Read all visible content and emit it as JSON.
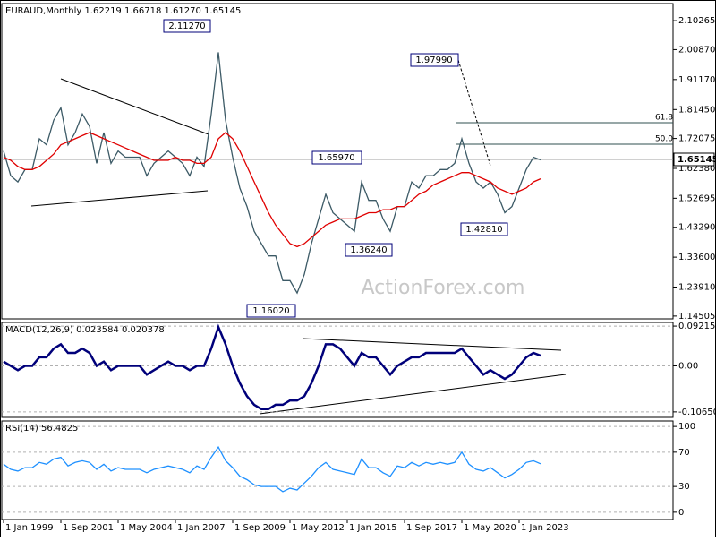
{
  "chart_data": [
    {
      "type": "line",
      "title": "EURAUD,Monthly  1.62219 1.66718 1.61270 1.65145",
      "watermark": "ActionForex.com",
      "annotations": [
        "2.11270",
        "1.97990",
        "1.65970",
        "1.36240",
        "1.42810",
        "1.16020",
        "61.8",
        "50.0"
      ],
      "last_price_label": "1.65145",
      "xlim": [
        -0.25,
        93.5
      ],
      "ylim": [
        1.136,
        2.158
      ],
      "grid": false,
      "yticks": [
        2.10265,
        {
          "value": 2.0087,
          "label": "2.00870"
        },
        {
          "value": 1.9117,
          "label": "1.91170"
        },
        {
          "value": 1.8145,
          "label": "1.81450"
        },
        1.72075,
        {
          "value": 1.6238,
          "label": "1.62380"
        },
        1.52695,
        {
          "value": 1.4329,
          "label": "1.43290"
        },
        {
          "value": 1.336,
          "label": "1.33600"
        },
        {
          "value": 1.2391,
          "label": "1.23910"
        },
        1.14505
      ],
      "series": [
        {
          "color": "#3c5a66",
          "values": [
            1.68,
            1.6,
            1.58,
            1.62,
            1.62,
            1.72,
            1.7,
            1.78,
            1.82,
            1.7,
            1.74,
            1.8,
            1.76,
            1.64,
            1.74,
            1.64,
            1.68,
            1.66,
            1.66,
            1.66,
            1.6,
            1.64,
            1.66,
            1.68,
            1.66,
            1.64,
            1.6,
            1.66,
            1.63,
            1.8,
            2.0,
            1.78,
            1.66,
            1.56,
            1.5,
            1.42,
            1.38,
            1.34,
            1.34,
            1.26,
            1.26,
            1.22,
            1.28,
            1.38,
            1.46,
            1.54,
            1.48,
            1.46,
            1.44,
            1.42,
            1.58,
            1.52,
            1.52,
            1.46,
            1.42,
            1.5,
            1.5,
            1.58,
            1.56,
            1.6,
            1.6,
            1.62,
            1.62,
            1.64,
            1.72,
            1.64,
            1.58,
            1.56,
            1.58,
            1.54,
            1.48,
            1.5,
            1.56,
            1.62,
            1.66,
            1.65145
          ]
        },
        {
          "color": "#e00000",
          "values": [
            1.66,
            1.65,
            1.63,
            1.62,
            1.62,
            1.63,
            1.65,
            1.67,
            1.7,
            1.71,
            1.72,
            1.73,
            1.74,
            1.73,
            1.72,
            1.71,
            1.7,
            1.69,
            1.68,
            1.67,
            1.66,
            1.65,
            1.65,
            1.65,
            1.66,
            1.65,
            1.65,
            1.64,
            1.64,
            1.66,
            1.72,
            1.74,
            1.72,
            1.68,
            1.63,
            1.58,
            1.53,
            1.48,
            1.44,
            1.41,
            1.38,
            1.37,
            1.38,
            1.4,
            1.42,
            1.44,
            1.45,
            1.46,
            1.46,
            1.46,
            1.47,
            1.48,
            1.48,
            1.49,
            1.49,
            1.5,
            1.5,
            1.52,
            1.54,
            1.55,
            1.57,
            1.58,
            1.59,
            1.6,
            1.61,
            1.61,
            1.6,
            1.59,
            1.58,
            1.56,
            1.55,
            1.54,
            1.55,
            1.56,
            1.58,
            1.59
          ]
        }
      ]
    },
    {
      "type": "line",
      "title": "MACD(12,26,9) 0.023584 0.020378",
      "xlim": [
        -0.25,
        93.5
      ],
      "ylim": [
        -0.1192,
        0.1006
      ],
      "grid": true,
      "yticks": [
        0.092158,
        {
          "value": 0,
          "label": "0.00"
        },
        -0.106503
      ],
      "series": [
        {
          "color": "#00007a",
          "values": [
            0.01,
            0.0,
            -0.01,
            0.0,
            0.0,
            0.02,
            0.02,
            0.04,
            0.05,
            0.03,
            0.03,
            0.04,
            0.03,
            0.0,
            0.01,
            -0.01,
            0.0,
            0.0,
            0.0,
            0.0,
            -0.02,
            -0.01,
            0.0,
            0.01,
            0.0,
            0.0,
            -0.01,
            0.0,
            0.0,
            0.04,
            0.09,
            0.05,
            0.0,
            -0.04,
            -0.07,
            -0.09,
            -0.1,
            -0.1,
            -0.09,
            -0.09,
            -0.08,
            -0.08,
            -0.07,
            -0.04,
            0.0,
            0.05,
            0.05,
            0.04,
            0.02,
            0.0,
            0.03,
            0.02,
            0.02,
            0.0,
            -0.02,
            0.0,
            0.01,
            0.02,
            0.02,
            0.03,
            0.03,
            0.03,
            0.03,
            0.03,
            0.04,
            0.02,
            0.0,
            -0.02,
            -0.01,
            -0.02,
            -0.03,
            -0.02,
            0.0,
            0.02,
            0.03,
            0.023584
          ]
        }
      ]
    },
    {
      "type": "line",
      "title": "RSI(14) 56.4825",
      "xlim": [
        -0.25,
        93.5
      ],
      "ylim": [
        -8.5,
        106.4
      ],
      "grid": true,
      "yticks": [
        100,
        70,
        30,
        0
      ],
      "xticks": [
        {
          "value": 0,
          "label": "1 Jan 1999"
        },
        {
          "value": 8,
          "label": "1 Sep 2001"
        },
        {
          "value": 16,
          "label": "1 May 2004"
        },
        {
          "value": 24,
          "label": "1 Jan 2007"
        },
        {
          "value": 32,
          "label": "1 Sep 2009"
        },
        {
          "value": 40,
          "label": "1 May 2012"
        },
        {
          "value": 48,
          "label": "1 Jan 2015"
        },
        {
          "value": 56,
          "label": "1 Sep 2017"
        },
        {
          "value": 64,
          "label": "1 May 2020"
        },
        {
          "value": 72,
          "label": "1 Jan 2023"
        }
      ],
      "series": [
        {
          "color": "#1e90ff",
          "values": [
            56,
            50,
            48,
            52,
            52,
            58,
            56,
            62,
            64,
            54,
            58,
            60,
            58,
            50,
            56,
            48,
            52,
            50,
            50,
            50,
            46,
            50,
            52,
            54,
            52,
            50,
            46,
            54,
            50,
            64,
            76,
            60,
            52,
            42,
            38,
            32,
            30,
            30,
            30,
            24,
            28,
            26,
            34,
            42,
            52,
            58,
            50,
            48,
            46,
            44,
            62,
            52,
            52,
            46,
            42,
            54,
            52,
            58,
            54,
            58,
            56,
            58,
            56,
            58,
            70,
            56,
            50,
            48,
            52,
            46,
            40,
            44,
            50,
            58,
            60,
            56.4825
          ]
        }
      ]
    }
  ]
}
